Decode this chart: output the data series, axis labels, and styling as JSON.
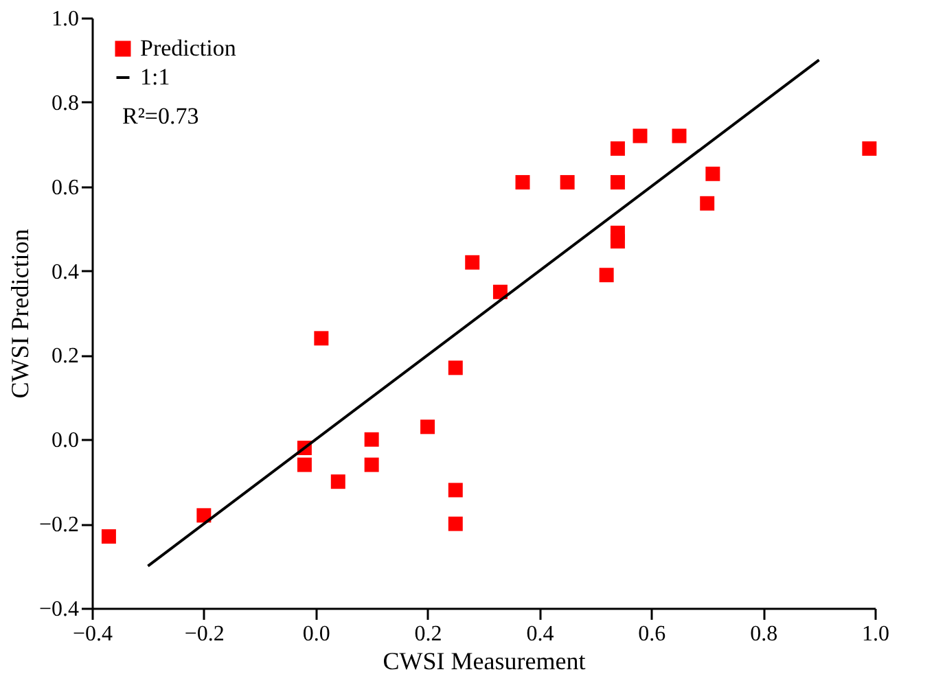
{
  "chart_data": {
    "type": "scatter",
    "xlabel": "CWSI Measurement",
    "ylabel": "CWSI Prediction",
    "xlim": [
      -0.4,
      1.0
    ],
    "xticks": [
      -0.4,
      -0.2,
      {
        "value": 0,
        "label": "0.0"
      },
      0.2,
      0.4,
      0.6,
      0.8,
      {
        "value": 1,
        "label": "1.0"
      }
    ],
    "ylim": [
      -0.4,
      1.0
    ],
    "yticks": [
      -0.4,
      -0.2,
      {
        "value": 0,
        "label": "0.0"
      },
      0.2,
      0.4,
      0.6,
      0.8,
      {
        "value": 1,
        "label": "1.0"
      }
    ],
    "grid": false,
    "legend": "top left",
    "annotations": [
      "R²=0.73"
    ],
    "series": [
      {
        "name": "Prediction",
        "marker": "square",
        "color": "#ff0000",
        "x": [
          -0.37,
          -0.2,
          -0.02,
          -0.02,
          0.01,
          0.04,
          0.1,
          0.1,
          0.2,
          0.25,
          0.25,
          0.25,
          0.28,
          0.33,
          0.37,
          0.45,
          0.52,
          0.54,
          0.54,
          0.54,
          0.54,
          0.58,
          0.65,
          0.71,
          0.7,
          0.99
        ],
        "values": [
          -0.23,
          -0.18,
          -0.02,
          -0.06,
          0.24,
          -0.1,
          0.0,
          -0.06,
          0.03,
          0.17,
          -0.12,
          -0.2,
          0.42,
          0.35,
          0.61,
          0.61,
          0.39,
          0.69,
          0.61,
          0.49,
          0.47,
          0.72,
          0.72,
          0.63,
          0.56,
          0.69
        ]
      },
      {
        "name": "1:1",
        "type": "line",
        "marker": "none",
        "color": "#000000",
        "line_style": "solid",
        "x": [
          -0.3,
          0.9
        ],
        "values": [
          -0.3,
          0.9
        ]
      }
    ]
  }
}
